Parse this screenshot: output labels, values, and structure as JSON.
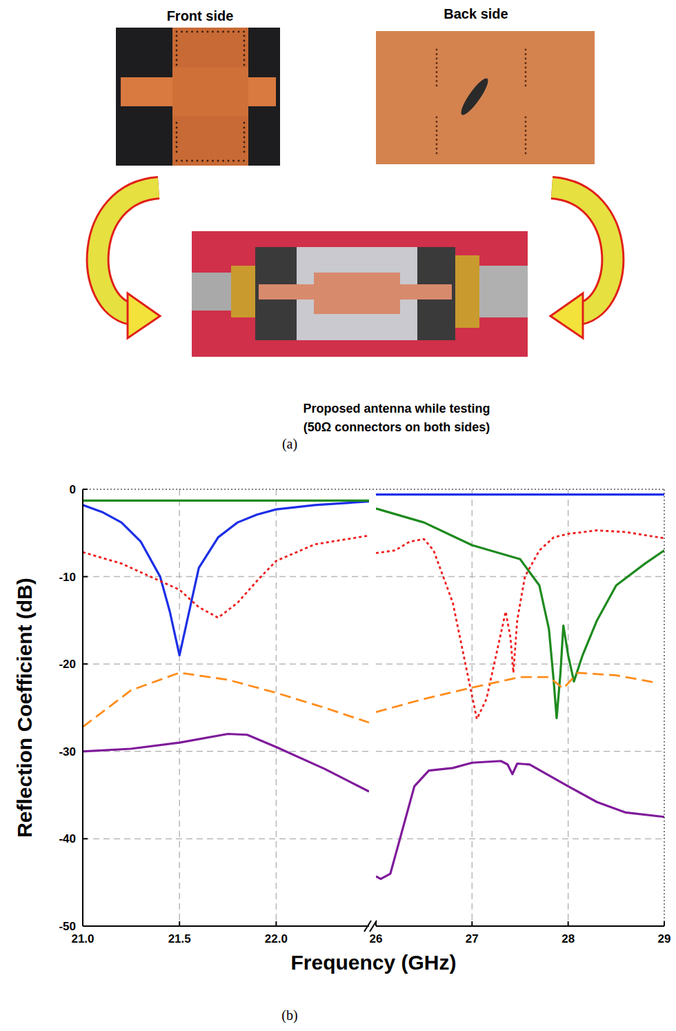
{
  "panel_a": {
    "front_label": "Front side",
    "back_label": "Back side",
    "caption": [
      "Proposed antenna while testing",
      "(50Ω connectors on both sides)"
    ],
    "panel_label": "(a)"
  },
  "chart_data": {
    "type": "line",
    "panel_label": "(b)",
    "x_label": "Frequency (GHz)",
    "y_label": "Reflection Coefficient (dB)",
    "xlim": [
      21,
      29
    ],
    "xbreak": [
      22.48,
      26
    ],
    "xticks": [
      {
        "value": 21,
        "label": "21.0"
      },
      21.5,
      {
        "value": 22,
        "label": "22.0"
      },
      26,
      27,
      28,
      29
    ],
    "ylim": [
      -50,
      0
    ],
    "yticks": [
      0,
      -10,
      -20,
      -30,
      -40,
      -50
    ],
    "grid": true,
    "series": [
      {
        "color": "#1c2fe6",
        "line_style": "solid",
        "x": [
          21.0,
          21.1,
          21.2,
          21.3,
          21.4,
          21.45,
          21.5,
          21.55,
          21.6,
          21.7,
          21.8,
          21.9,
          22.0,
          22.2,
          22.48,
          null,
          26.0,
          27.0,
          28.0,
          29.0
        ],
        "values": [
          -1.8,
          -2.6,
          -3.8,
          -6,
          -10,
          -14,
          -19,
          -14,
          -9,
          -5.5,
          -3.8,
          -2.9,
          -2.3,
          -1.8,
          -1.4,
          null,
          -0.6,
          -0.6,
          -0.6,
          -0.6
        ]
      },
      {
        "color": "#1e8a1e",
        "line_style": "solid",
        "x": [
          21.0,
          22.48,
          null,
          26.0,
          26.5,
          27.0,
          27.5,
          27.7,
          27.8,
          27.85,
          27.88,
          27.92,
          27.95,
          28.0,
          28.06,
          28.15,
          28.3,
          28.5,
          28.8,
          29.0
        ],
        "values": [
          -1.3,
          -1.3,
          null,
          -2.2,
          -3.8,
          -6.4,
          -8,
          -11,
          -16,
          -22,
          -26.2,
          -21,
          -15.6,
          -19,
          -22,
          -19,
          -15,
          -11,
          -8.5,
          -7
        ]
      },
      {
        "color": "#ee1c1c",
        "line_style": "dotted",
        "x": [
          21.0,
          21.2,
          21.4,
          21.5,
          21.6,
          21.7,
          21.8,
          21.9,
          22.0,
          22.2,
          22.48,
          null,
          26.0,
          26.2,
          26.35,
          26.5,
          26.6,
          26.8,
          26.95,
          27.05,
          27.15,
          27.25,
          27.35,
          27.4,
          27.43,
          27.47,
          27.55,
          27.7,
          27.85,
          28.0,
          28.3,
          28.6,
          29.0
        ],
        "values": [
          -7.2,
          -8.5,
          -10.5,
          -11.5,
          -13.5,
          -14.7,
          -13,
          -10.5,
          -8.2,
          -6.3,
          -5.3,
          null,
          -7.3,
          -7,
          -6,
          -5.7,
          -7,
          -13,
          -21,
          -26.3,
          -24,
          -19,
          -14,
          -17,
          -21,
          -15,
          -10,
          -7,
          -5.5,
          -5.1,
          -4.7,
          -4.9,
          -5.6
        ]
      },
      {
        "color": "#ff8c1a",
        "line_style": "dashed",
        "x": [
          21.0,
          21.25,
          21.5,
          21.75,
          22.0,
          22.25,
          22.48,
          null,
          26.0,
          26.5,
          27.0,
          27.5,
          27.8,
          27.95,
          28.1,
          28.5,
          28.9
        ],
        "values": [
          -27.2,
          -23,
          -21,
          -21.8,
          -23.3,
          -25,
          -26.7,
          null,
          -25.5,
          -24,
          -22.7,
          -21.5,
          -21.5,
          -22.8,
          -21,
          -21.3,
          -22.1
        ]
      },
      {
        "color": "#7f1a9a",
        "line_style": "solid",
        "x": [
          21.0,
          21.25,
          21.5,
          21.75,
          21.85,
          22.0,
          22.25,
          22.48,
          null,
          26.0,
          26.05,
          26.15,
          26.25,
          26.4,
          26.55,
          26.8,
          27.0,
          27.3,
          27.37,
          27.42,
          27.47,
          27.6,
          28.0,
          28.3,
          28.6,
          29.0
        ],
        "values": [
          -30,
          -29.7,
          -29,
          -28,
          -28.1,
          -29.5,
          -32,
          -34.6,
          null,
          -44.3,
          -44.6,
          -44,
          -40,
          -34,
          -32.2,
          -31.9,
          -31.3,
          -31.1,
          -31.5,
          -32.6,
          -31.4,
          -31.5,
          -34,
          -35.8,
          -37,
          -37.5
        ]
      }
    ]
  }
}
